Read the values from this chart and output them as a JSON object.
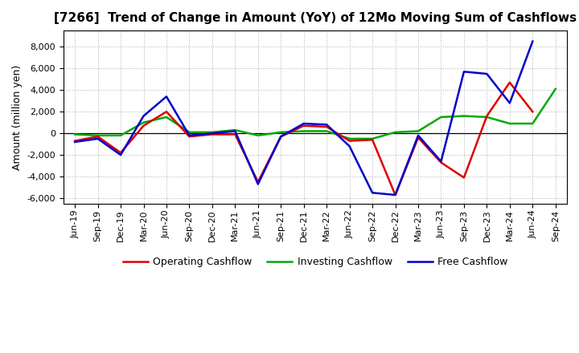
{
  "title": "[7266]  Trend of Change in Amount (YoY) of 12Mo Moving Sum of Cashflows",
  "ylabel": "Amount (million yen)",
  "x_labels": [
    "Jun-19",
    "Sep-19",
    "Dec-19",
    "Mar-20",
    "Jun-20",
    "Sep-20",
    "Dec-20",
    "Mar-21",
    "Jun-21",
    "Sep-21",
    "Dec-21",
    "Mar-22",
    "Jun-22",
    "Sep-22",
    "Dec-22",
    "Mar-23",
    "Jun-23",
    "Sep-23",
    "Dec-23",
    "Mar-24",
    "Jun-24",
    "Sep-24"
  ],
  "operating": [
    -700,
    -300,
    -1800,
    700,
    2000,
    -300,
    -100,
    -100,
    -4500,
    -300,
    700,
    600,
    -700,
    -600,
    -5700,
    -400,
    -2700,
    -4100,
    1600,
    4700,
    2000,
    null
  ],
  "investing": [
    -100,
    -200,
    -200,
    1000,
    1500,
    100,
    100,
    300,
    -200,
    100,
    200,
    200,
    -500,
    -500,
    100,
    200,
    1500,
    1600,
    1500,
    900,
    900,
    4100
  ],
  "free": [
    -800,
    -500,
    -2000,
    1600,
    3400,
    -200,
    0,
    200,
    -4700,
    -300,
    900,
    800,
    -1200,
    -5500,
    -5700,
    -200,
    -2600,
    5700,
    5500,
    2800,
    8500,
    null
  ],
  "ylim": [
    -6500,
    9500
  ],
  "yticks": [
    -6000,
    -4000,
    -2000,
    0,
    2000,
    4000,
    6000,
    8000
  ],
  "operating_color": "#dd0000",
  "investing_color": "#00aa00",
  "free_color": "#0000cc",
  "background_color": "#ffffff",
  "grid_color": "#b0b0b0",
  "linewidth": 1.8,
  "title_fontsize": 11,
  "legend_fontsize": 9,
  "axis_label_fontsize": 9,
  "tick_fontsize": 8
}
